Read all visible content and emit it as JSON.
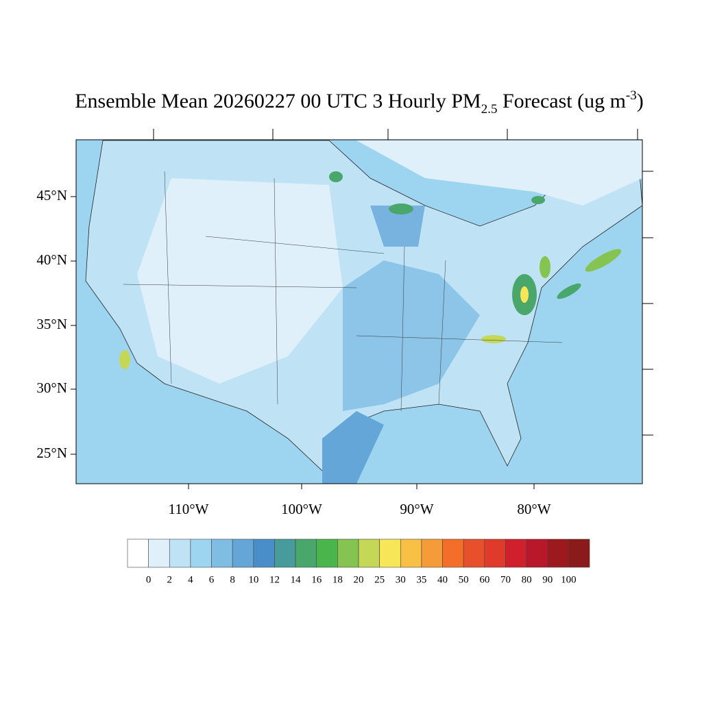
{
  "title": {
    "main": "Ensemble Mean 20260227 00 UTC 3 Hourly PM",
    "subscript": "2.5",
    "after": " Forecast (ug m",
    "superscript": "-3",
    "close": ")"
  },
  "map": {
    "lat_labels": [
      "45°N",
      "40°N",
      "35°N",
      "30°N",
      "25°N"
    ],
    "lon_labels": [
      "110°W",
      "100°W",
      "90°W",
      "80°W"
    ]
  },
  "colorbar": {
    "levels": [
      0,
      2,
      4,
      6,
      8,
      10,
      12,
      14,
      16,
      18,
      20,
      25,
      30,
      35,
      40,
      50,
      60,
      70,
      80,
      90,
      100
    ],
    "colors": [
      "#ffffff",
      "#dff0fa",
      "#bfe3f5",
      "#9dd5f1",
      "#7fbde3",
      "#65a6d8",
      "#4a8ec9",
      "#479b9a",
      "#4aa76b",
      "#4ab54a",
      "#85c450",
      "#c5d756",
      "#f6e658",
      "#f8c044",
      "#f59b37",
      "#f36e28",
      "#e84f2b",
      "#e03a2a",
      "#d0202d",
      "#b8182a",
      "#9c1a1e",
      "#8b1a1a"
    ]
  }
}
